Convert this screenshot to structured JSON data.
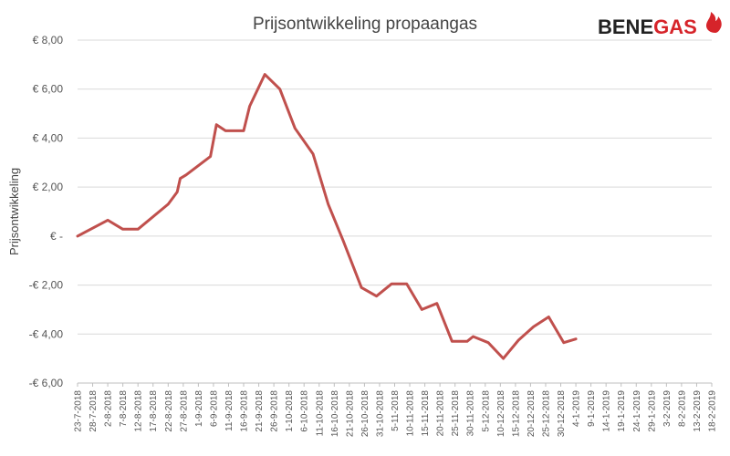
{
  "brand": {
    "part1": "BENE",
    "part2": "GAS",
    "color_dark": "#222222",
    "color_accent": "#d6242a"
  },
  "chart_data": {
    "type": "line",
    "title": "Prijsontwikkeling propaangas",
    "xlabel": "",
    "ylabel": "Prijsontwikkeling",
    "ylim": [
      -6,
      8
    ],
    "yticks": [
      {
        "value": 8,
        "label": "€ 8,00"
      },
      {
        "value": 6,
        "label": "€ 6,00"
      },
      {
        "value": 4,
        "label": "€ 4,00"
      },
      {
        "value": 2,
        "label": "€ 2,00"
      },
      {
        "value": 0,
        "label": "€ -"
      },
      {
        "value": -2,
        "label": "-€ 2,00"
      },
      {
        "value": -4,
        "label": "-€ 4,00"
      },
      {
        "value": -6,
        "label": "-€ 6,00"
      }
    ],
    "grid": true,
    "line_color": "#c0504d",
    "categories": [
      "23-7-2018",
      "28-7-2018",
      "2-8-2018",
      "7-8-2018",
      "12-8-2018",
      "17-8-2018",
      "22-8-2018",
      "27-8-2018",
      "1-9-2018",
      "6-9-2018",
      "11-9-2018",
      "16-9-2018",
      "21-9-2018",
      "26-9-2018",
      "1-10-2018",
      "6-10-2018",
      "11-10-2018",
      "16-10-2018",
      "21-10-2018",
      "26-10-2018",
      "31-10-2018",
      "5-11-2018",
      "10-11-2018",
      "15-11-2018",
      "20-11-2018",
      "25-11-2018",
      "30-11-2018",
      "5-12-2018",
      "10-12-2018",
      "15-12-2018",
      "20-12-2018",
      "25-12-2018",
      "30-12-2018",
      "4-1-2019",
      "9-1-2019",
      "14-1-2019",
      "19-1-2019",
      "24-1-2019",
      "29-1-2019",
      "3-2-2019",
      "8-2-2019",
      "13-2-2019",
      "18-2-2019"
    ],
    "series": [
      {
        "points": [
          {
            "x": "23-7-2018",
            "y": 0.0
          },
          {
            "x": "2-8-2018",
            "y": 0.65
          },
          {
            "x": "7-8-2018",
            "y": 0.28
          },
          {
            "x": "12-8-2018",
            "y": 0.28
          },
          {
            "x": "22-8-2018",
            "y": 1.3
          },
          {
            "x": "25-8-2018",
            "y": 1.8
          },
          {
            "x": "26-8-2018",
            "y": 2.35
          },
          {
            "x": "28-8-2018",
            "y": 2.5
          },
          {
            "x": "5-9-2018",
            "y": 3.25
          },
          {
            "x": "7-9-2018",
            "y": 4.55
          },
          {
            "x": "10-9-2018",
            "y": 4.3
          },
          {
            "x": "16-9-2018",
            "y": 4.3
          },
          {
            "x": "18-9-2018",
            "y": 5.3
          },
          {
            "x": "23-9-2018",
            "y": 6.6
          },
          {
            "x": "28-9-2018",
            "y": 6.0
          },
          {
            "x": "3-10-2018",
            "y": 4.4
          },
          {
            "x": "9-10-2018",
            "y": 3.35
          },
          {
            "x": "14-10-2018",
            "y": 1.3
          },
          {
            "x": "19-10-2018",
            "y": -0.2
          },
          {
            "x": "25-10-2018",
            "y": -2.1
          },
          {
            "x": "30-10-2018",
            "y": -2.45
          },
          {
            "x": "4-11-2018",
            "y": -1.95
          },
          {
            "x": "9-11-2018",
            "y": -1.95
          },
          {
            "x": "14-11-2018",
            "y": -3.0
          },
          {
            "x": "19-11-2018",
            "y": -2.75
          },
          {
            "x": "24-11-2018",
            "y": -4.3
          },
          {
            "x": "29-11-2018",
            "y": -4.3
          },
          {
            "x": "1-12-2018",
            "y": -4.1
          },
          {
            "x": "6-12-2018",
            "y": -4.35
          },
          {
            "x": "11-12-2018",
            "y": -5.0
          },
          {
            "x": "16-12-2018",
            "y": -4.25
          },
          {
            "x": "21-12-2018",
            "y": -3.7
          },
          {
            "x": "26-12-2018",
            "y": -3.3
          },
          {
            "x": "31-12-2018",
            "y": -4.35
          },
          {
            "x": "4-1-2019",
            "y": -4.2
          }
        ]
      }
    ]
  }
}
